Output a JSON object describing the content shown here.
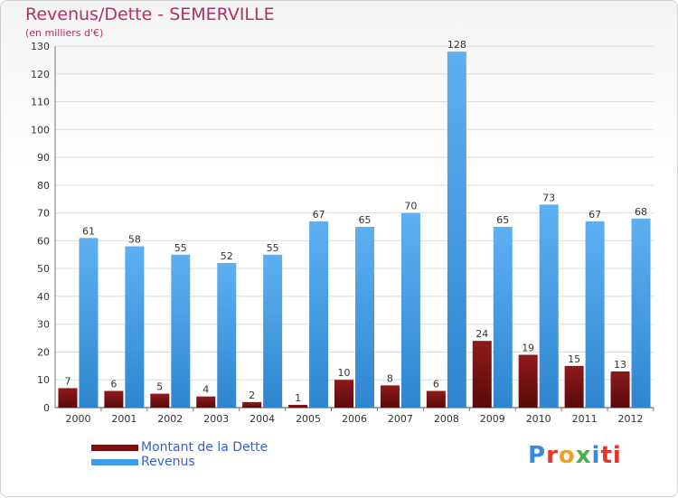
{
  "header": {
    "title": "Revenus/Dette - SEMERVILLE",
    "subtitle": "(en milliers d'€)"
  },
  "legend": {
    "items": [
      {
        "label": "Montant de la Dette",
        "color": "#7a1010"
      },
      {
        "label": "Revenus",
        "color": "#3f9ce8"
      }
    ]
  },
  "brand": {
    "logo_text": "Proxiti"
  },
  "chart_data": {
    "type": "bar",
    "title": "Revenus/Dette - SEMERVILLE",
    "subtitle": "(en milliers d'€)",
    "categories": [
      "2000",
      "2001",
      "2002",
      "2003",
      "2004",
      "2005",
      "2006",
      "2007",
      "2008",
      "2009",
      "2010",
      "2011",
      "2012"
    ],
    "series": [
      {
        "name": "Montant de la Dette",
        "color": "#7a1010",
        "values": [
          7,
          6,
          5,
          4,
          2,
          1,
          10,
          8,
          6,
          24,
          19,
          15,
          13
        ]
      },
      {
        "name": "Revenus",
        "color": "#3f9ce8",
        "values": [
          61,
          58,
          55,
          52,
          55,
          67,
          65,
          70,
          128,
          65,
          73,
          67,
          68
        ]
      }
    ],
    "ylim": [
      0,
      130
    ],
    "yticks": [
      0,
      10,
      20,
      30,
      40,
      50,
      60,
      70,
      80,
      90,
      100,
      110,
      120,
      130
    ],
    "grid": true,
    "legend_position": "bottom-left"
  }
}
